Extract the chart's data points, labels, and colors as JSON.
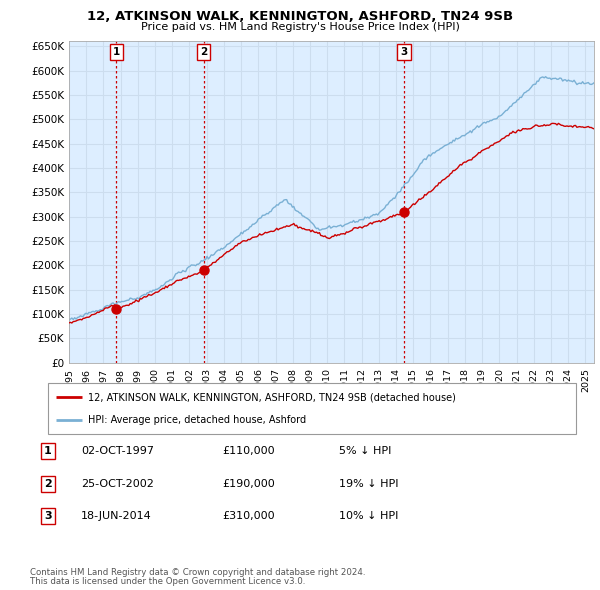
{
  "title": "12, ATKINSON WALK, KENNINGTON, ASHFORD, TN24 9SB",
  "subtitle": "Price paid vs. HM Land Registry's House Price Index (HPI)",
  "ylim": [
    0,
    650000
  ],
  "ytick_vals": [
    0,
    50000,
    100000,
    150000,
    200000,
    250000,
    300000,
    350000,
    400000,
    450000,
    500000,
    550000,
    600000,
    650000
  ],
  "ytick_labels": [
    "£0",
    "£50K",
    "£100K",
    "£150K",
    "£200K",
    "£250K",
    "£300K",
    "£350K",
    "£400K",
    "£450K",
    "£500K",
    "£550K",
    "£600K",
    "£650K"
  ],
  "xlim_start": 1995.0,
  "xlim_end": 2025.5,
  "sales": [
    {
      "date": 1997.75,
      "price": 110000,
      "label": "1"
    },
    {
      "date": 2002.82,
      "price": 190000,
      "label": "2"
    },
    {
      "date": 2014.46,
      "price": 310000,
      "label": "3"
    }
  ],
  "legend_property_label": "12, ATKINSON WALK, KENNINGTON, ASHFORD, TN24 9SB (detached house)",
  "legend_hpi_label": "HPI: Average price, detached house, Ashford",
  "table_rows": [
    {
      "num": "1",
      "date": "02-OCT-1997",
      "price": "£110,000",
      "change": "5% ↓ HPI"
    },
    {
      "num": "2",
      "date": "25-OCT-2002",
      "price": "£190,000",
      "change": "19% ↓ HPI"
    },
    {
      "num": "3",
      "date": "18-JUN-2014",
      "price": "£310,000",
      "change": "10% ↓ HPI"
    }
  ],
  "footnote1": "Contains HM Land Registry data © Crown copyright and database right 2024.",
  "footnote2": "This data is licensed under the Open Government Licence v3.0.",
  "property_line_color": "#cc0000",
  "hpi_line_color": "#7ab0d4",
  "vline_color": "#cc0000",
  "dot_color": "#cc0000",
  "grid_color": "#ccddee",
  "bg_color": "#ddeeff"
}
